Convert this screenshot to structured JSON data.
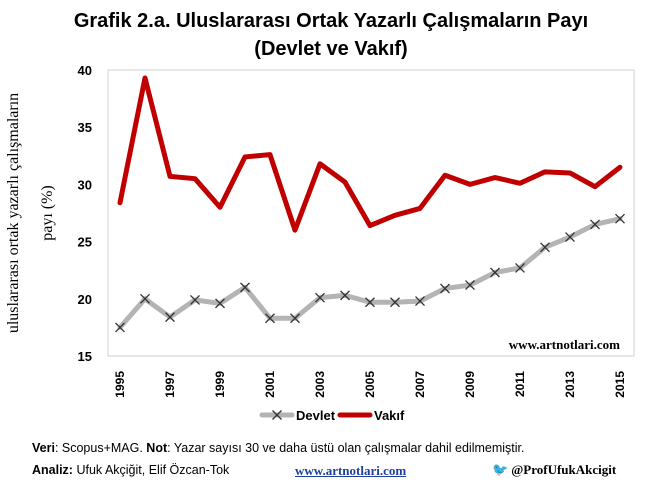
{
  "title_line1": "Grafik 2.a. Uluslararası Ortak Yazarlı Çalışmaların Payı",
  "title_line2": "(Devlet ve Vakıf)",
  "watermark": "www.artnotlari.com",
  "footer": {
    "veri_label": "Veri",
    "veri_text": ": Scopus+MAG. ",
    "not_label": "Not",
    "not_text": ": Yazar sayısı 30 ve daha üstü olan çalışmalar dahil edilmemiştir.",
    "analiz_label": "Analiz:",
    "analiz_text": " Ufuk Akçiğit, Elif Özcan-Tok",
    "website": "www.artnotlari.com",
    "twitter": "@ProfUfukAkcigit"
  },
  "chart_data": {
    "type": "line",
    "ylabel_line1": "uluslararası ortak yazarlı çalışmaların",
    "ylabel_line2": "payı (%)",
    "ylim": [
      15,
      40
    ],
    "yticks": [
      "15",
      "20",
      "25",
      "30",
      "35",
      "40"
    ],
    "x": [
      1995,
      1996,
      1997,
      1998,
      1999,
      2000,
      2001,
      2002,
      2003,
      2004,
      2005,
      2006,
      2007,
      2008,
      2009,
      2010,
      2011,
      2012,
      2013,
      2014,
      2015
    ],
    "xtick_labels": [
      "1995",
      "1997",
      "1999",
      "2001",
      "2003",
      "2005",
      "2007",
      "2009",
      "2011",
      "2013",
      "2015"
    ],
    "legend_position": "bottom",
    "grid": false,
    "series": [
      {
        "name": "Devlet",
        "color": "#b4b4b4",
        "marker": "x",
        "values": [
          17.5,
          20.0,
          18.4,
          19.9,
          19.6,
          21.0,
          18.3,
          18.3,
          20.1,
          20.3,
          19.7,
          19.7,
          19.8,
          20.9,
          21.2,
          22.3,
          22.7,
          24.5,
          25.4,
          26.5,
          27.0
        ]
      },
      {
        "name": "Vakıf",
        "color": "#c00000",
        "marker": "none",
        "values": [
          28.4,
          39.3,
          30.7,
          30.5,
          28.0,
          32.4,
          32.6,
          26.0,
          31.8,
          30.2,
          26.4,
          27.3,
          27.9,
          30.8,
          30.0,
          30.6,
          30.1,
          31.1,
          31.0,
          29.8,
          31.5
        ]
      }
    ]
  }
}
